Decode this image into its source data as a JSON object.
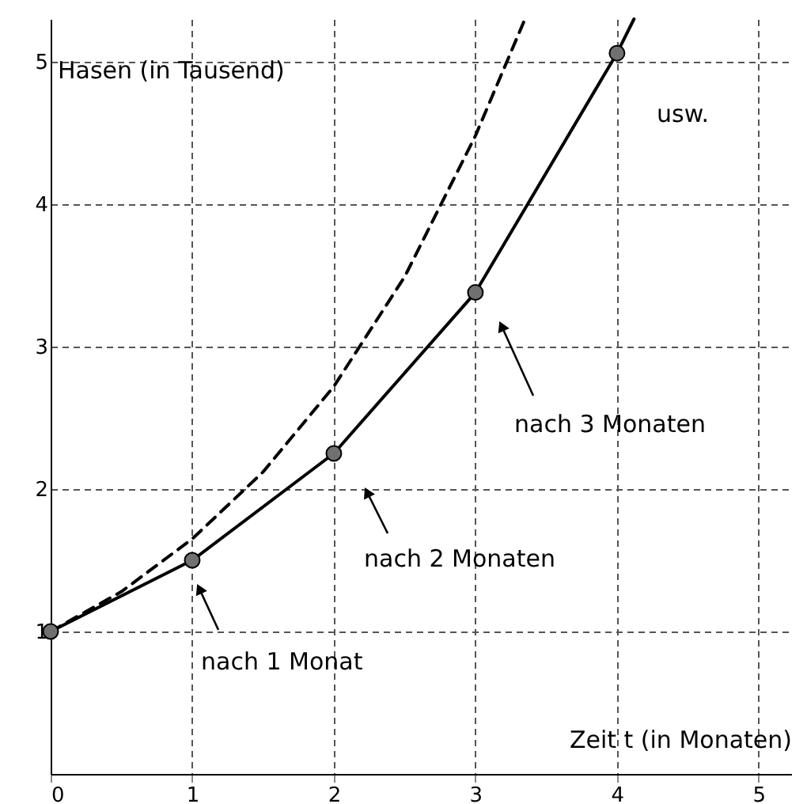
{
  "chart_data": {
    "type": "line",
    "xlabel": "Zeit t (in Monaten)",
    "ylabel": "Hasen (in Tausend)",
    "xlim": [
      0,
      5.23
    ],
    "ylim": [
      0,
      5.3
    ],
    "xticks": [
      0,
      1,
      2,
      3,
      4,
      5
    ],
    "yticks": [
      1,
      2,
      3,
      4,
      5
    ],
    "grid": true,
    "series": [
      {
        "line_style": "dashed",
        "color": "#000000",
        "x": [
          0,
          0.5,
          1,
          1.5,
          2,
          2.5,
          3,
          3.35
        ],
        "values": [
          1,
          1.28,
          1.65,
          2.12,
          2.72,
          3.49,
          4.48,
          5.3
        ]
      },
      {
        "line_style": "solid",
        "color": "#000000",
        "x": [
          0,
          1,
          2,
          3,
          4,
          4.12
        ],
        "values": [
          1,
          1.5,
          2.25,
          3.38,
          5.06,
          5.3
        ]
      },
      {
        "type": "scatter",
        "marker": "circle",
        "color": "#707070",
        "x": [
          0,
          1,
          2,
          3,
          4
        ],
        "values": [
          1,
          1.5,
          2.25,
          3.38,
          5.06
        ]
      }
    ],
    "annotations": [
      "nach 1 Monat",
      "nach 2 Monaten",
      "nach 3 Monaten",
      "usw."
    ]
  }
}
